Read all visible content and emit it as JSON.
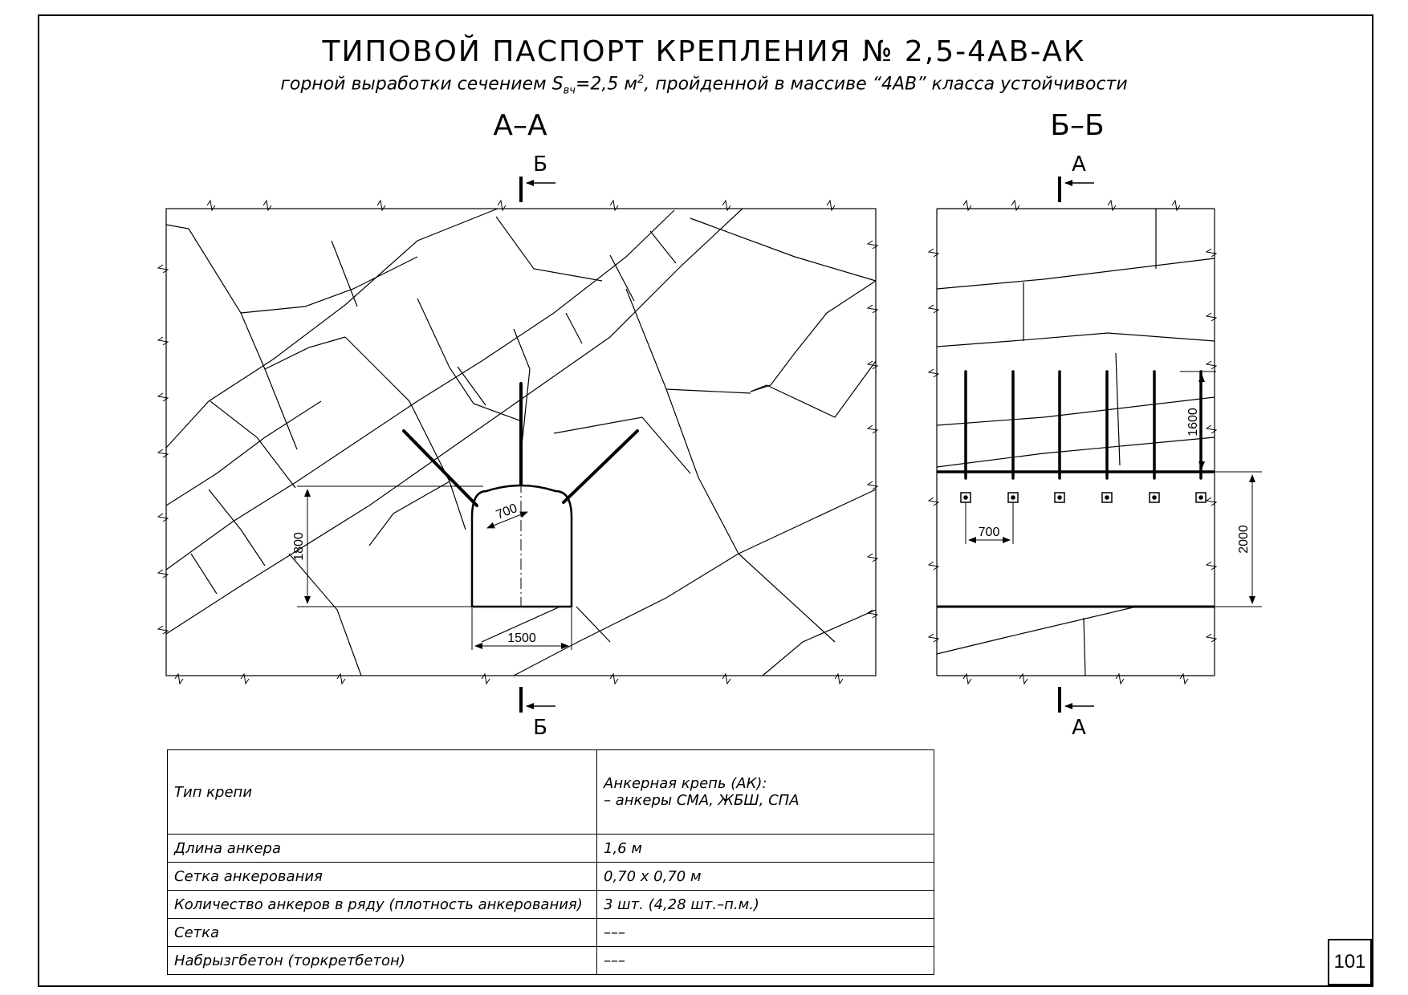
{
  "title": "ТИПОВОЙ ПАСПОРТ КРЕПЛЕНИЯ № 2,5-4АВ-АК",
  "subtitle": {
    "part1": "горной выработки сечением S",
    "sub": "вч",
    "part2": "=2,5 м",
    "sup": "2",
    "part3": ", пройденной в массиве “4АВ” класса устойчивости"
  },
  "section_aa": {
    "label": "А–А",
    "cut_top": "Б",
    "cut_bottom": "Б",
    "dim_height": "1800",
    "dim_width": "1500",
    "dim_arch": "700"
  },
  "section_bb": {
    "label": "Б–Б",
    "cut_top": "А",
    "cut_bottom": "А",
    "dim_anchor": "1600",
    "dim_spacing": "700",
    "dim_height": "2000"
  },
  "spec_table": {
    "rows": [
      {
        "label": "Тип крепи",
        "value_lines": [
          "Анкерная крепь (АК):",
          "– анкеры СМА, ЖБШ, СПА"
        ]
      },
      {
        "label": "Длина анкера",
        "value_lines": [
          "1,6 м"
        ]
      },
      {
        "label": "Сетка анкерования",
        "value_lines": [
          "0,70 x 0,70 м"
        ]
      },
      {
        "label": "Количество анкеров в ряду (плотность анкерования)",
        "value_lines": [
          "3 шт. (4,28 шт.–п.м.)"
        ]
      },
      {
        "label": "Сетка",
        "value_lines": [
          "–––"
        ]
      },
      {
        "label": "Набрызгбетон (торкретбетон)",
        "value_lines": [
          "–––"
        ]
      }
    ]
  },
  "page_number": "101"
}
